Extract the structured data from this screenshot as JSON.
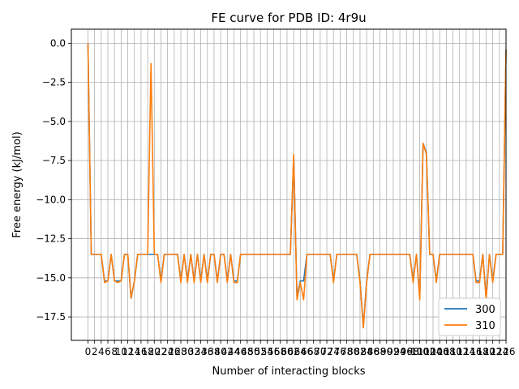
{
  "chart_data": {
    "type": "line",
    "title": "FE curve for PDB ID: 4r9u",
    "xlabel": "Number of interacting blocks",
    "ylabel": "Free energy (kJ/mol)",
    "xlim": [
      -5,
      126
    ],
    "ylim": [
      -19,
      0.9
    ],
    "y_ticks": [
      0.0,
      -2.5,
      -5.0,
      -7.5,
      -10.0,
      -12.5,
      -15.0,
      -17.5
    ],
    "y_tick_labels": [
      "0.0",
      "−2.5",
      "−5.0",
      "−7.5",
      "−10.0",
      "−12.5",
      "−15.0",
      "−17.5"
    ],
    "x_ticks_first_label": "0",
    "x_ticks_last_label": "126",
    "x_tick_step": 2,
    "grid": true,
    "legend_position": "lower-right",
    "series": [
      {
        "name": "300",
        "color": "#1f77b4",
        "points": [
          [
            0,
            0.0
          ],
          [
            1,
            -13.5
          ],
          [
            2,
            -13.5
          ],
          [
            3,
            -13.5
          ],
          [
            4,
            -13.5
          ],
          [
            5,
            -15.2
          ],
          [
            6,
            -15.2
          ],
          [
            7,
            -13.5
          ],
          [
            8,
            -15.2
          ],
          [
            9,
            -15.2
          ],
          [
            10,
            -15.2
          ],
          [
            11,
            -13.5
          ],
          [
            12,
            -13.5
          ],
          [
            13,
            -16.3
          ],
          [
            14,
            -15.2
          ],
          [
            15,
            -13.5
          ],
          [
            16,
            -13.5
          ],
          [
            17,
            -13.5
          ],
          [
            18,
            -13.5
          ],
          [
            19,
            -13.5
          ],
          [
            20,
            -13.5
          ],
          [
            21,
            -13.5
          ],
          [
            22,
            -15.2
          ],
          [
            23,
            -13.5
          ],
          [
            24,
            -13.5
          ],
          [
            25,
            -13.5
          ],
          [
            26,
            -13.5
          ],
          [
            27,
            -13.5
          ],
          [
            28,
            -15.2
          ],
          [
            29,
            -13.5
          ],
          [
            30,
            -15.2
          ],
          [
            31,
            -13.5
          ],
          [
            32,
            -15.2
          ],
          [
            33,
            -13.5
          ],
          [
            34,
            -15.2
          ],
          [
            35,
            -13.5
          ],
          [
            36,
            -15.2
          ],
          [
            37,
            -13.5
          ],
          [
            38,
            -13.5
          ],
          [
            39,
            -15.2
          ],
          [
            40,
            -13.5
          ],
          [
            41,
            -13.5
          ],
          [
            42,
            -15.2
          ],
          [
            43,
            -13.5
          ],
          [
            44,
            -15.2
          ],
          [
            45,
            -15.2
          ],
          [
            46,
            -13.5
          ],
          [
            47,
            -13.5
          ],
          [
            48,
            -13.5
          ],
          [
            49,
            -13.5
          ],
          [
            50,
            -13.5
          ],
          [
            51,
            -13.5
          ],
          [
            52,
            -13.5
          ],
          [
            53,
            -13.5
          ],
          [
            54,
            -13.5
          ],
          [
            55,
            -13.5
          ],
          [
            56,
            -13.5
          ],
          [
            57,
            -13.5
          ],
          [
            58,
            -13.5
          ],
          [
            59,
            -13.5
          ],
          [
            60,
            -13.5
          ],
          [
            61,
            -13.5
          ],
          [
            62,
            -7.2
          ],
          [
            63,
            -16.2
          ],
          [
            64,
            -15.2
          ],
          [
            65,
            -15.2
          ],
          [
            66,
            -13.5
          ],
          [
            67,
            -13.5
          ],
          [
            68,
            -13.5
          ],
          [
            69,
            -13.5
          ],
          [
            70,
            -13.5
          ],
          [
            71,
            -13.5
          ],
          [
            72,
            -13.5
          ],
          [
            73,
            -13.5
          ],
          [
            74,
            -15.2
          ],
          [
            75,
            -13.5
          ],
          [
            76,
            -13.5
          ],
          [
            77,
            -13.5
          ],
          [
            78,
            -13.5
          ],
          [
            79,
            -13.5
          ],
          [
            80,
            -13.5
          ],
          [
            81,
            -13.5
          ],
          [
            82,
            -15.2
          ],
          [
            83,
            -18.1
          ],
          [
            84,
            -15.2
          ],
          [
            85,
            -13.5
          ],
          [
            86,
            -13.5
          ],
          [
            87,
            -13.5
          ],
          [
            88,
            -13.5
          ],
          [
            89,
            -13.5
          ],
          [
            90,
            -13.5
          ],
          [
            91,
            -13.5
          ],
          [
            92,
            -13.5
          ],
          [
            93,
            -13.5
          ],
          [
            94,
            -13.5
          ],
          [
            95,
            -13.5
          ],
          [
            96,
            -13.5
          ],
          [
            97,
            -13.5
          ],
          [
            98,
            -15.2
          ],
          [
            99,
            -13.5
          ],
          [
            100,
            -16.3
          ],
          [
            101,
            -6.4
          ],
          [
            102,
            -7.0
          ],
          [
            103,
            -13.5
          ],
          [
            104,
            -13.5
          ],
          [
            105,
            -15.2
          ],
          [
            106,
            -13.5
          ],
          [
            107,
            -13.5
          ],
          [
            108,
            -13.5
          ],
          [
            109,
            -13.5
          ],
          [
            110,
            -13.5
          ],
          [
            111,
            -13.5
          ],
          [
            112,
            -13.5
          ],
          [
            113,
            -13.5
          ],
          [
            114,
            -13.5
          ],
          [
            115,
            -13.5
          ],
          [
            116,
            -13.5
          ],
          [
            117,
            -15.2
          ],
          [
            118,
            -15.2
          ],
          [
            119,
            -13.5
          ],
          [
            120,
            -16.3
          ],
          [
            121,
            -13.5
          ],
          [
            122,
            -15.2
          ],
          [
            123,
            -13.5
          ],
          [
            124,
            -13.5
          ],
          [
            125,
            -13.5
          ],
          [
            126,
            -0.4
          ]
        ]
      },
      {
        "name": "310",
        "color": "#ff7f0e",
        "points": [
          [
            0,
            0.0
          ],
          [
            1,
            -13.5
          ],
          [
            2,
            -13.5
          ],
          [
            3,
            -13.5
          ],
          [
            4,
            -13.5
          ],
          [
            5,
            -15.3
          ],
          [
            6,
            -15.2
          ],
          [
            7,
            -13.5
          ],
          [
            8,
            -15.2
          ],
          [
            9,
            -15.3
          ],
          [
            10,
            -15.2
          ],
          [
            11,
            -13.5
          ],
          [
            12,
            -13.5
          ],
          [
            13,
            -16.3
          ],
          [
            14,
            -15.2
          ],
          [
            15,
            -13.5
          ],
          [
            16,
            -13.5
          ],
          [
            17,
            -13.5
          ],
          [
            18,
            -13.5
          ],
          [
            19,
            -1.3
          ],
          [
            20,
            -13.5
          ],
          [
            21,
            -13.5
          ],
          [
            22,
            -15.3
          ],
          [
            23,
            -13.5
          ],
          [
            24,
            -13.5
          ],
          [
            25,
            -13.5
          ],
          [
            26,
            -13.5
          ],
          [
            27,
            -13.5
          ],
          [
            28,
            -15.3
          ],
          [
            29,
            -13.5
          ],
          [
            30,
            -15.3
          ],
          [
            31,
            -13.5
          ],
          [
            32,
            -15.3
          ],
          [
            33,
            -13.5
          ],
          [
            34,
            -15.3
          ],
          [
            35,
            -13.5
          ],
          [
            36,
            -15.3
          ],
          [
            37,
            -13.5
          ],
          [
            38,
            -13.5
          ],
          [
            39,
            -15.3
          ],
          [
            40,
            -13.5
          ],
          [
            41,
            -13.5
          ],
          [
            42,
            -15.3
          ],
          [
            43,
            -13.5
          ],
          [
            44,
            -15.3
          ],
          [
            45,
            -15.3
          ],
          [
            46,
            -13.5
          ],
          [
            47,
            -13.5
          ],
          [
            48,
            -13.5
          ],
          [
            49,
            -13.5
          ],
          [
            50,
            -13.5
          ],
          [
            51,
            -13.5
          ],
          [
            52,
            -13.5
          ],
          [
            53,
            -13.5
          ],
          [
            54,
            -13.5
          ],
          [
            55,
            -13.5
          ],
          [
            56,
            -13.5
          ],
          [
            57,
            -13.5
          ],
          [
            58,
            -13.5
          ],
          [
            59,
            -13.5
          ],
          [
            60,
            -13.5
          ],
          [
            61,
            -13.5
          ],
          [
            62,
            -7.1
          ],
          [
            63,
            -16.4
          ],
          [
            64,
            -15.3
          ],
          [
            65,
            -16.4
          ],
          [
            66,
            -13.5
          ],
          [
            67,
            -13.5
          ],
          [
            68,
            -13.5
          ],
          [
            69,
            -13.5
          ],
          [
            70,
            -13.5
          ],
          [
            71,
            -13.5
          ],
          [
            72,
            -13.5
          ],
          [
            73,
            -13.5
          ],
          [
            74,
            -15.3
          ],
          [
            75,
            -13.5
          ],
          [
            76,
            -13.5
          ],
          [
            77,
            -13.5
          ],
          [
            78,
            -13.5
          ],
          [
            79,
            -13.5
          ],
          [
            80,
            -13.5
          ],
          [
            81,
            -13.5
          ],
          [
            82,
            -15.3
          ],
          [
            83,
            -18.2
          ],
          [
            84,
            -15.3
          ],
          [
            85,
            -13.5
          ],
          [
            86,
            -13.5
          ],
          [
            87,
            -13.5
          ],
          [
            88,
            -13.5
          ],
          [
            89,
            -13.5
          ],
          [
            90,
            -13.5
          ],
          [
            91,
            -13.5
          ],
          [
            92,
            -13.5
          ],
          [
            93,
            -13.5
          ],
          [
            94,
            -13.5
          ],
          [
            95,
            -13.5
          ],
          [
            96,
            -13.5
          ],
          [
            97,
            -13.5
          ],
          [
            98,
            -15.3
          ],
          [
            99,
            -13.5
          ],
          [
            100,
            -16.4
          ],
          [
            101,
            -6.4
          ],
          [
            102,
            -7.1
          ],
          [
            103,
            -13.5
          ],
          [
            104,
            -13.5
          ],
          [
            105,
            -15.3
          ],
          [
            106,
            -13.5
          ],
          [
            107,
            -13.5
          ],
          [
            108,
            -13.5
          ],
          [
            109,
            -13.5
          ],
          [
            110,
            -13.5
          ],
          [
            111,
            -13.5
          ],
          [
            112,
            -13.5
          ],
          [
            113,
            -13.5
          ],
          [
            114,
            -13.5
          ],
          [
            115,
            -13.5
          ],
          [
            116,
            -13.5
          ],
          [
            117,
            -15.3
          ],
          [
            118,
            -15.3
          ],
          [
            119,
            -13.5
          ],
          [
            120,
            -16.4
          ],
          [
            121,
            -13.5
          ],
          [
            122,
            -15.3
          ],
          [
            123,
            -13.5
          ],
          [
            124,
            -13.5
          ],
          [
            125,
            -13.5
          ],
          [
            126,
            -0.4
          ]
        ]
      }
    ]
  }
}
